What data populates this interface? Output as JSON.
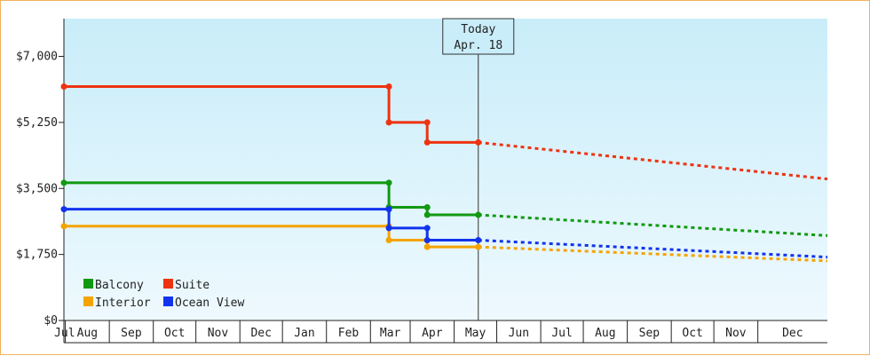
{
  "chart_data": {
    "type": "line",
    "title": "",
    "xlabel": "",
    "ylabel": "",
    "ylim": [
      0,
      8000
    ],
    "yticks": [
      0,
      1750,
      3500,
      5250,
      7000
    ],
    "ytick_labels": [
      "$0",
      "$1,750",
      "$3,500",
      "$5,250",
      "$7,000"
    ],
    "x_categories": [
      "Jul",
      "Aug",
      "Sep",
      "Oct",
      "Nov",
      "Dec",
      "Jan",
      "Feb",
      "Mar",
      "Apr",
      "May",
      "Jun",
      "Jul",
      "Aug",
      "Sep",
      "Oct",
      "Nov",
      "Dec"
    ],
    "x_start": "2024-06-30",
    "x_end": "2025-12-20",
    "today": {
      "label": "Today",
      "date_label": "Apr. 18",
      "date": "2025-04-18"
    },
    "grid": false,
    "background": {
      "top": "#c9edf9",
      "bottom": "#eef9fe"
    },
    "legend_position": "bottom-left",
    "series": [
      {
        "name": "Balcony",
        "color": "#119911",
        "points": [
          [
            "2024-06-30",
            3650
          ],
          [
            "2025-02-14",
            3650
          ],
          [
            "2025-02-14",
            3000
          ],
          [
            "2025-03-13",
            3000
          ],
          [
            "2025-03-13",
            2800
          ],
          [
            "2025-04-18",
            2800
          ]
        ],
        "forecast": [
          [
            "2025-04-18",
            2800
          ],
          [
            "2025-12-20",
            2250
          ]
        ]
      },
      {
        "name": "Suite",
        "color": "#ee3311",
        "points": [
          [
            "2024-06-30",
            6200
          ],
          [
            "2025-02-14",
            6200
          ],
          [
            "2025-02-14",
            5250
          ],
          [
            "2025-03-13",
            5250
          ],
          [
            "2025-03-13",
            4720
          ],
          [
            "2025-04-18",
            4720
          ]
        ],
        "forecast": [
          [
            "2025-04-18",
            4720
          ],
          [
            "2025-12-20",
            3750
          ]
        ]
      },
      {
        "name": "Interior",
        "color": "#f5a300",
        "points": [
          [
            "2024-06-30",
            2500
          ],
          [
            "2025-02-14",
            2500
          ],
          [
            "2025-02-14",
            2130
          ],
          [
            "2025-03-13",
            2130
          ],
          [
            "2025-03-13",
            1950
          ],
          [
            "2025-04-18",
            1950
          ]
        ],
        "forecast": [
          [
            "2025-04-18",
            1950
          ],
          [
            "2025-12-20",
            1580
          ]
        ]
      },
      {
        "name": "Ocean View",
        "color": "#1133ee",
        "points": [
          [
            "2024-06-30",
            2950
          ],
          [
            "2025-02-14",
            2950
          ],
          [
            "2025-02-14",
            2450
          ],
          [
            "2025-03-13",
            2450
          ],
          [
            "2025-03-13",
            2130
          ],
          [
            "2025-04-18",
            2130
          ]
        ],
        "forecast": [
          [
            "2025-04-18",
            2130
          ],
          [
            "2025-12-20",
            1680
          ]
        ]
      }
    ],
    "legend_order": [
      "Balcony",
      "Suite",
      "Interior",
      "Ocean View"
    ]
  }
}
